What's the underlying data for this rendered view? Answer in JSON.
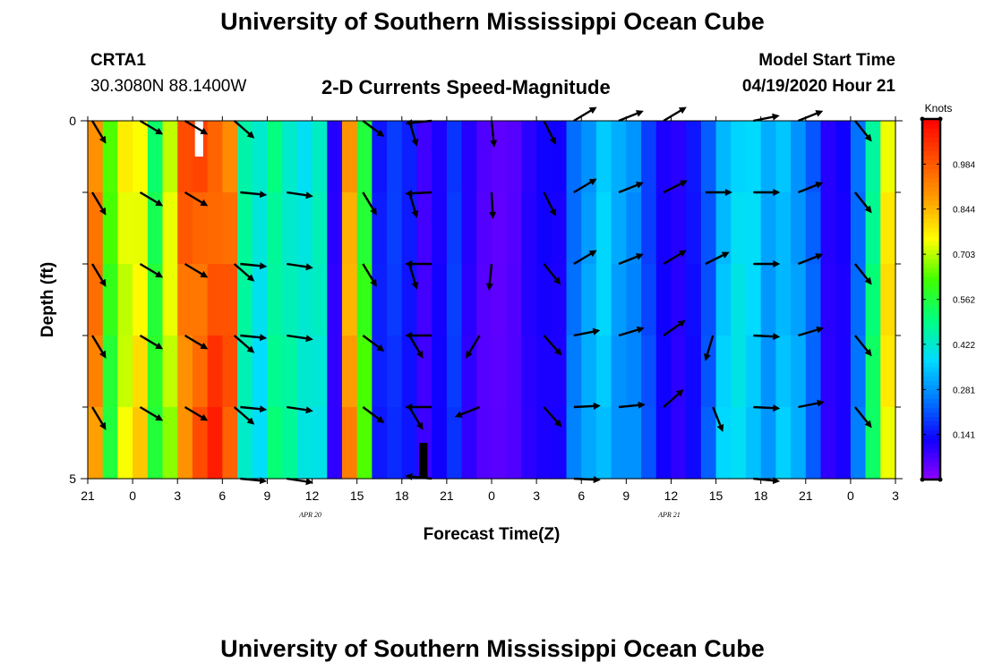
{
  "header": {
    "title": "University of Southern Mississippi Ocean Cube",
    "station": "CRTA1",
    "coords": "30.3080N 88.1400W",
    "plot_title": "2-D Currents Speed-Magnitude",
    "model_start_label": "Model Start Time",
    "model_start_value": "04/19/2020 Hour 21"
  },
  "footer": {
    "title": "University of Southern Mississippi Ocean Cube"
  },
  "colors": {
    "scale": [
      "#9000ff",
      "#1000ff",
      "#0078ff",
      "#00dcff",
      "#00ff80",
      "#40ff00",
      "#ffff00",
      "#ffa000",
      "#ff5000",
      "#ff0000"
    ],
    "arrow": "#000000",
    "missing_white": "#ffffff",
    "missing_black": "#000000"
  },
  "chart_data": {
    "type": "heatmap",
    "title": "2-D Currents Speed-Magnitude",
    "xlabel": "Forecast Time(Z)",
    "ylabel": "Depth (ft)",
    "x_range_hours": [
      0,
      54
    ],
    "y_range_ft": [
      0,
      5
    ],
    "x_ticks": [
      {
        "hour": 0,
        "label": "21"
      },
      {
        "hour": 3,
        "label": "0"
      },
      {
        "hour": 6,
        "label": "3"
      },
      {
        "hour": 9,
        "label": "6"
      },
      {
        "hour": 12,
        "label": "9"
      },
      {
        "hour": 15,
        "label": "12"
      },
      {
        "hour": 18,
        "label": "15"
      },
      {
        "hour": 21,
        "label": "18"
      },
      {
        "hour": 24,
        "label": "21"
      },
      {
        "hour": 27,
        "label": "0"
      },
      {
        "hour": 30,
        "label": "3"
      },
      {
        "hour": 33,
        "label": "6"
      },
      {
        "hour": 36,
        "label": "9"
      },
      {
        "hour": 39,
        "label": "12"
      },
      {
        "hour": 42,
        "label": "15"
      },
      {
        "hour": 45,
        "label": "18"
      },
      {
        "hour": 48,
        "label": "21"
      },
      {
        "hour": 51,
        "label": "0"
      },
      {
        "hour": 54,
        "label": "3"
      }
    ],
    "y_ticks": [
      {
        "depth": 0,
        "label": "0"
      },
      {
        "depth": 5,
        "label": "5"
      }
    ],
    "date_labels": [
      {
        "hour": 15,
        "label": "APR 20"
      },
      {
        "hour": 39,
        "label": "APR 21"
      }
    ],
    "colorbar": {
      "title": "Knots",
      "min": 0.0,
      "max": 1.125,
      "ticks": [
        0.141,
        0.281,
        0.422,
        0.562,
        0.703,
        0.844,
        0.984
      ],
      "tick_labels": [
        "0.141",
        "0.281",
        "0.422",
        "0.562",
        "0.703",
        "0.844",
        "0.984"
      ]
    },
    "depth_bins": 5,
    "speed_knots_by_hour": [
      0.9,
      0.6,
      0.75,
      0.78,
      0.55,
      0.7,
      0.95,
      1.0,
      1.02,
      0.95,
      0.45,
      0.4,
      0.5,
      0.45,
      0.4,
      0.42,
      0.1,
      0.9,
      0.6,
      0.15,
      0.18,
      0.15,
      0.08,
      0.12,
      0.18,
      0.1,
      0.06,
      0.05,
      0.06,
      0.1,
      0.12,
      0.12,
      0.25,
      0.3,
      0.35,
      0.3,
      0.28,
      0.2,
      0.12,
      0.1,
      0.14,
      0.22,
      0.35,
      0.38,
      0.36,
      0.3,
      0.35,
      0.3,
      0.22,
      0.1,
      0.12,
      0.25,
      0.5,
      0.75
    ],
    "missing_cells": [
      {
        "hour": 7,
        "depth_from": 0,
        "depth_to": 0.5,
        "color": "white"
      },
      {
        "hour": 22,
        "depth_from": 4.5,
        "depth_to": 5,
        "color": "black"
      }
    ],
    "vectors": [
      {
        "hour": 0.3,
        "depth": 0,
        "dx": 0.6,
        "dy": 1
      },
      {
        "hour": 0.3,
        "depth": 1,
        "dx": 0.6,
        "dy": 1
      },
      {
        "hour": 0.3,
        "depth": 2,
        "dx": 0.6,
        "dy": 1
      },
      {
        "hour": 0.3,
        "depth": 3,
        "dx": 0.6,
        "dy": 1
      },
      {
        "hour": 0.3,
        "depth": 4,
        "dx": 0.6,
        "dy": 1
      },
      {
        "hour": 3.5,
        "depth": 0,
        "dx": 1,
        "dy": 0.6
      },
      {
        "hour": 3.5,
        "depth": 1,
        "dx": 1,
        "dy": 0.6
      },
      {
        "hour": 3.5,
        "depth": 2,
        "dx": 1,
        "dy": 0.6
      },
      {
        "hour": 3.5,
        "depth": 3,
        "dx": 1,
        "dy": 0.6
      },
      {
        "hour": 3.5,
        "depth": 4,
        "dx": 1,
        "dy": 0.6
      },
      {
        "hour": 6.5,
        "depth": 0,
        "dx": 1,
        "dy": 0.6
      },
      {
        "hour": 6.5,
        "depth": 1,
        "dx": 1,
        "dy": 0.6
      },
      {
        "hour": 6.5,
        "depth": 2,
        "dx": 1,
        "dy": 0.6
      },
      {
        "hour": 6.5,
        "depth": 3,
        "dx": 1,
        "dy": 0.6
      },
      {
        "hour": 6.5,
        "depth": 4,
        "dx": 1,
        "dy": 0.6
      },
      {
        "hour": 9.8,
        "depth": 0,
        "dx": 0.8,
        "dy": 0.7
      },
      {
        "hour": 10.2,
        "depth": 1,
        "dx": 1,
        "dy": 0.1
      },
      {
        "hour": 9.8,
        "depth": 2,
        "dx": 0.8,
        "dy": 0.7
      },
      {
        "hour": 9.8,
        "depth": 3,
        "dx": 0.8,
        "dy": 0.7
      },
      {
        "hour": 9.8,
        "depth": 4,
        "dx": 0.8,
        "dy": 0.7
      },
      {
        "hour": 10.2,
        "depth": 2,
        "dx": 1,
        "dy": 0.1
      },
      {
        "hour": 10.2,
        "depth": 3,
        "dx": 1,
        "dy": 0.1
      },
      {
        "hour": 10.2,
        "depth": 4,
        "dx": 1,
        "dy": 0.1
      },
      {
        "hour": 10.2,
        "depth": 5,
        "dx": 1,
        "dy": 0.1
      },
      {
        "hour": 13.3,
        "depth": 1,
        "dx": 1,
        "dy": 0.15
      },
      {
        "hour": 13.3,
        "depth": 2,
        "dx": 1,
        "dy": 0.15
      },
      {
        "hour": 13.3,
        "depth": 3,
        "dx": 1,
        "dy": 0.15
      },
      {
        "hour": 13.3,
        "depth": 4,
        "dx": 1,
        "dy": 0.15
      },
      {
        "hour": 13.3,
        "depth": 5,
        "dx": 1,
        "dy": 0.15
      },
      {
        "hour": 18.4,
        "depth": 0,
        "dx": 0.8,
        "dy": 0.6
      },
      {
        "hour": 18.4,
        "depth": 1,
        "dx": 0.6,
        "dy": 1
      },
      {
        "hour": 18.4,
        "depth": 2,
        "dx": 0.6,
        "dy": 1
      },
      {
        "hour": 18.4,
        "depth": 3,
        "dx": 0.8,
        "dy": 0.6
      },
      {
        "hour": 18.4,
        "depth": 4,
        "dx": 0.8,
        "dy": 0.6
      },
      {
        "hour": 21.5,
        "depth": 0,
        "dx": 0.3,
        "dy": 1
      },
      {
        "hour": 21.5,
        "depth": 1,
        "dx": 0.3,
        "dy": 1
      },
      {
        "hour": 21.5,
        "depth": 2,
        "dx": 0.3,
        "dy": 1
      },
      {
        "hour": 21.5,
        "depth": 3,
        "dx": 0.6,
        "dy": 1
      },
      {
        "hour": 21.5,
        "depth": 4,
        "dx": 0.6,
        "dy": 1
      },
      {
        "hour": 23,
        "depth": 0,
        "dx": -1,
        "dy": 0.1
      },
      {
        "hour": 23,
        "depth": 1,
        "dx": -1,
        "dy": 0.05
      },
      {
        "hour": 23,
        "depth": 2,
        "dx": -1,
        "dy": 0
      },
      {
        "hour": 23,
        "depth": 3,
        "dx": -1,
        "dy": 0
      },
      {
        "hour": 23,
        "depth": 4,
        "dx": -1,
        "dy": 0
      },
      {
        "hour": 23,
        "depth": 5,
        "dx": -1,
        "dy": -0.1
      },
      {
        "hour": 27,
        "depth": 0,
        "dx": 0.1,
        "dy": 1
      },
      {
        "hour": 27,
        "depth": 1,
        "dx": 0.05,
        "dy": 1
      },
      {
        "hour": 27,
        "depth": 2,
        "dx": -0.1,
        "dy": 1
      },
      {
        "hour": 26.2,
        "depth": 3,
        "dx": -0.6,
        "dy": 1
      },
      {
        "hour": 26.2,
        "depth": 4,
        "dx": -1,
        "dy": 0.4
      },
      {
        "hour": 30.5,
        "depth": 0,
        "dx": 0.5,
        "dy": 1
      },
      {
        "hour": 30.5,
        "depth": 1,
        "dx": 0.5,
        "dy": 1
      },
      {
        "hour": 30.5,
        "depth": 2,
        "dx": 0.8,
        "dy": 1
      },
      {
        "hour": 30.5,
        "depth": 3,
        "dx": 0.8,
        "dy": 0.9
      },
      {
        "hour": 30.5,
        "depth": 4,
        "dx": 0.8,
        "dy": 0.9
      },
      {
        "hour": 32.5,
        "depth": 0,
        "dx": 1,
        "dy": -0.6
      },
      {
        "hour": 32.5,
        "depth": 1,
        "dx": 1,
        "dy": -0.6
      },
      {
        "hour": 32.5,
        "depth": 2,
        "dx": 1,
        "dy": -0.6
      },
      {
        "hour": 32.5,
        "depth": 3,
        "dx": 1,
        "dy": -0.2
      },
      {
        "hour": 32.5,
        "depth": 4,
        "dx": 1,
        "dy": -0.05
      },
      {
        "hour": 32.5,
        "depth": 5,
        "dx": 1,
        "dy": 0.05
      },
      {
        "hour": 35.5,
        "depth": 0,
        "dx": 1,
        "dy": -0.4
      },
      {
        "hour": 35.5,
        "depth": 1,
        "dx": 1,
        "dy": -0.4
      },
      {
        "hour": 35.5,
        "depth": 2,
        "dx": 1,
        "dy": -0.4
      },
      {
        "hour": 35.5,
        "depth": 3,
        "dx": 1,
        "dy": -0.3
      },
      {
        "hour": 35.5,
        "depth": 4,
        "dx": 1,
        "dy": -0.1
      },
      {
        "hour": 38.5,
        "depth": 0,
        "dx": 1,
        "dy": -0.6
      },
      {
        "hour": 38.5,
        "depth": 1,
        "dx": 1,
        "dy": -0.5
      },
      {
        "hour": 38.5,
        "depth": 2,
        "dx": 1,
        "dy": -0.6
      },
      {
        "hour": 38.5,
        "depth": 3,
        "dx": 1,
        "dy": -0.7
      },
      {
        "hour": 38.5,
        "depth": 4,
        "dx": 0.9,
        "dy": -0.8
      },
      {
        "hour": 41.3,
        "depth": 1,
        "dx": 1,
        "dy": 0
      },
      {
        "hour": 41.3,
        "depth": 2,
        "dx": 1,
        "dy": -0.5
      },
      {
        "hour": 41.8,
        "depth": 3,
        "dx": -0.3,
        "dy": 1
      },
      {
        "hour": 41.8,
        "depth": 4,
        "dx": 0.4,
        "dy": 1
      },
      {
        "hour": 44.5,
        "depth": 0,
        "dx": 1,
        "dy": -0.2
      },
      {
        "hour": 44.5,
        "depth": 1,
        "dx": 1,
        "dy": 0
      },
      {
        "hour": 44.5,
        "depth": 2,
        "dx": 1,
        "dy": 0
      },
      {
        "hour": 44.5,
        "depth": 3,
        "dx": 1,
        "dy": 0.05
      },
      {
        "hour": 44.5,
        "depth": 4,
        "dx": 1,
        "dy": 0.05
      },
      {
        "hour": 44.5,
        "depth": 5,
        "dx": 1,
        "dy": 0.1
      },
      {
        "hour": 47.5,
        "depth": 0,
        "dx": 1,
        "dy": -0.4
      },
      {
        "hour": 47.5,
        "depth": 1,
        "dx": 1,
        "dy": -0.4
      },
      {
        "hour": 47.5,
        "depth": 2,
        "dx": 1,
        "dy": -0.4
      },
      {
        "hour": 47.5,
        "depth": 3,
        "dx": 1,
        "dy": -0.3
      },
      {
        "hour": 47.5,
        "depth": 4,
        "dx": 1,
        "dy": -0.2
      },
      {
        "hour": 51.3,
        "depth": 0,
        "dx": 0.8,
        "dy": 1
      },
      {
        "hour": 51.3,
        "depth": 1,
        "dx": 0.8,
        "dy": 1
      },
      {
        "hour": 51.3,
        "depth": 2,
        "dx": 0.8,
        "dy": 1
      },
      {
        "hour": 51.3,
        "depth": 3,
        "dx": 0.8,
        "dy": 1
      },
      {
        "hour": 51.3,
        "depth": 4,
        "dx": 0.8,
        "dy": 1
      }
    ]
  }
}
